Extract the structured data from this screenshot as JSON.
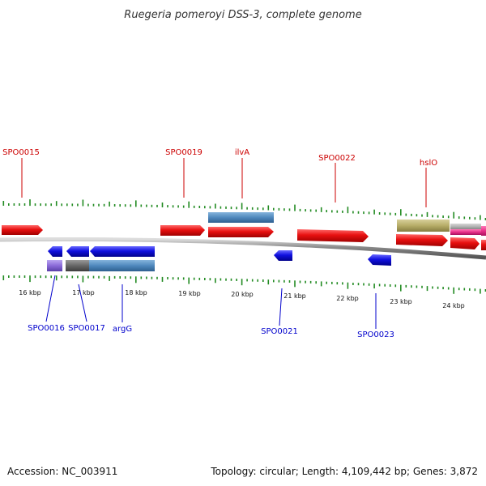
{
  "title": "Ruegeria pomeroyi DSS-3, complete genome",
  "footer": {
    "accession": "Accession: NC_003911",
    "summary": "Topology: circular; Length: 4,109,442 bp; Genes: 3,872"
  },
  "colors": {
    "forward_gene": "#e81010",
    "reverse_gene": "#1010e0",
    "cds_blue": "#4f88bd",
    "cds_purple": "#8a6ad8",
    "cds_gray": "#666666",
    "cds_olive": "#b7ad68",
    "cds_pink": "#e8308a",
    "cds_lightgray": "#b5b5b5",
    "tick": "#228b22",
    "top_label": "#cc0000",
    "bottom_label": "#0000cc"
  },
  "kbp_labels": [
    "16 kbp",
    "17 kbp",
    "18 kbp",
    "19 kbp",
    "20 kbp",
    "21 kbp",
    "22 kbp",
    "23 kbp",
    "24 kbp"
  ],
  "top_labels": [
    {
      "text": "SPO0015"
    },
    {
      "text": "SPO0019"
    },
    {
      "text": "ilvA"
    },
    {
      "text": "SPO0022"
    },
    {
      "text": "hslO"
    }
  ],
  "bottom_labels": [
    {
      "text": "SPO0016"
    },
    {
      "text": "SPO0017"
    },
    {
      "text": "argG"
    },
    {
      "text": "SPO0021"
    },
    {
      "text": "SPO0023"
    }
  ]
}
